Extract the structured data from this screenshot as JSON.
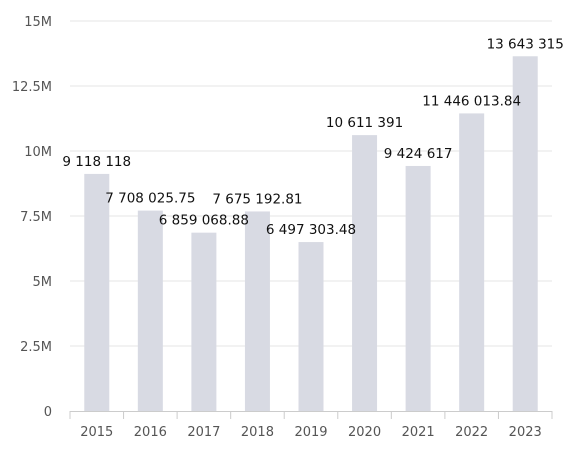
{
  "chart_data": {
    "type": "bar",
    "categories": [
      "2015",
      "2016",
      "2017",
      "2018",
      "2019",
      "2020",
      "2021",
      "2022",
      "2023"
    ],
    "values": [
      9118118,
      7708025.75,
      6859068.88,
      7675192.81,
      6497303.48,
      10611391,
      9424617,
      11446013.84,
      13643315
    ],
    "value_labels": [
      "9 118 118",
      "7 708 025.75",
      "6 859 068.88",
      "7 675 192.81",
      "6 497 303.48",
      "10 611 391",
      "9 424 617",
      "11 446 013.84",
      "13 643 315"
    ],
    "yticks": [
      0,
      2500000,
      5000000,
      7500000,
      10000000,
      12500000,
      15000000
    ],
    "ytick_labels": [
      "0",
      "2.5M",
      "5M",
      "7.5M",
      "10M",
      "12.5M",
      "15M"
    ],
    "ylim": [
      0,
      15000000
    ],
    "title": "",
    "xlabel": "",
    "ylabel": "",
    "grid": true,
    "legend": "none",
    "bar_color": "#d8dae3",
    "grid_color": "#e6e6e6",
    "axis_color": "#cccccc"
  }
}
